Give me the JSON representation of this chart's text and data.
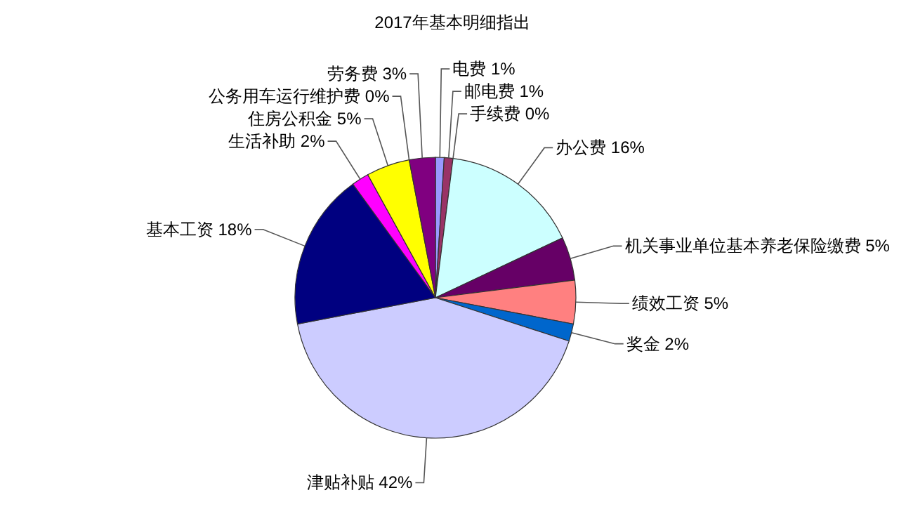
{
  "chart_data": {
    "type": "pie",
    "title": "2017年基本明细指出",
    "categories": [
      "电费",
      "邮电费",
      "手续费",
      "办公费",
      "机关事业单位基本养老保险缴费",
      "绩效工资",
      "奖金",
      "津贴补贴",
      "基本工资",
      "生活补助",
      "住房公积金",
      "公务用车运行维护费",
      "劳务费"
    ],
    "values": [
      1,
      1,
      0,
      16,
      5,
      5,
      2,
      42,
      18,
      2,
      5,
      0,
      3
    ],
    "value_labels": [
      "1%",
      "1%",
      "0%",
      "16%",
      "5%",
      "5%",
      "2%",
      "42%",
      "18%",
      "2%",
      "5%",
      "0%",
      "3%"
    ],
    "colors": [
      "#9999ff",
      "#993366",
      null,
      "#ccffff",
      "#660066",
      "#ff8080",
      "#0066cc",
      "#ccccff",
      "#000080",
      "#ff00ff",
      "#ffff00",
      null,
      "#800080"
    ]
  }
}
